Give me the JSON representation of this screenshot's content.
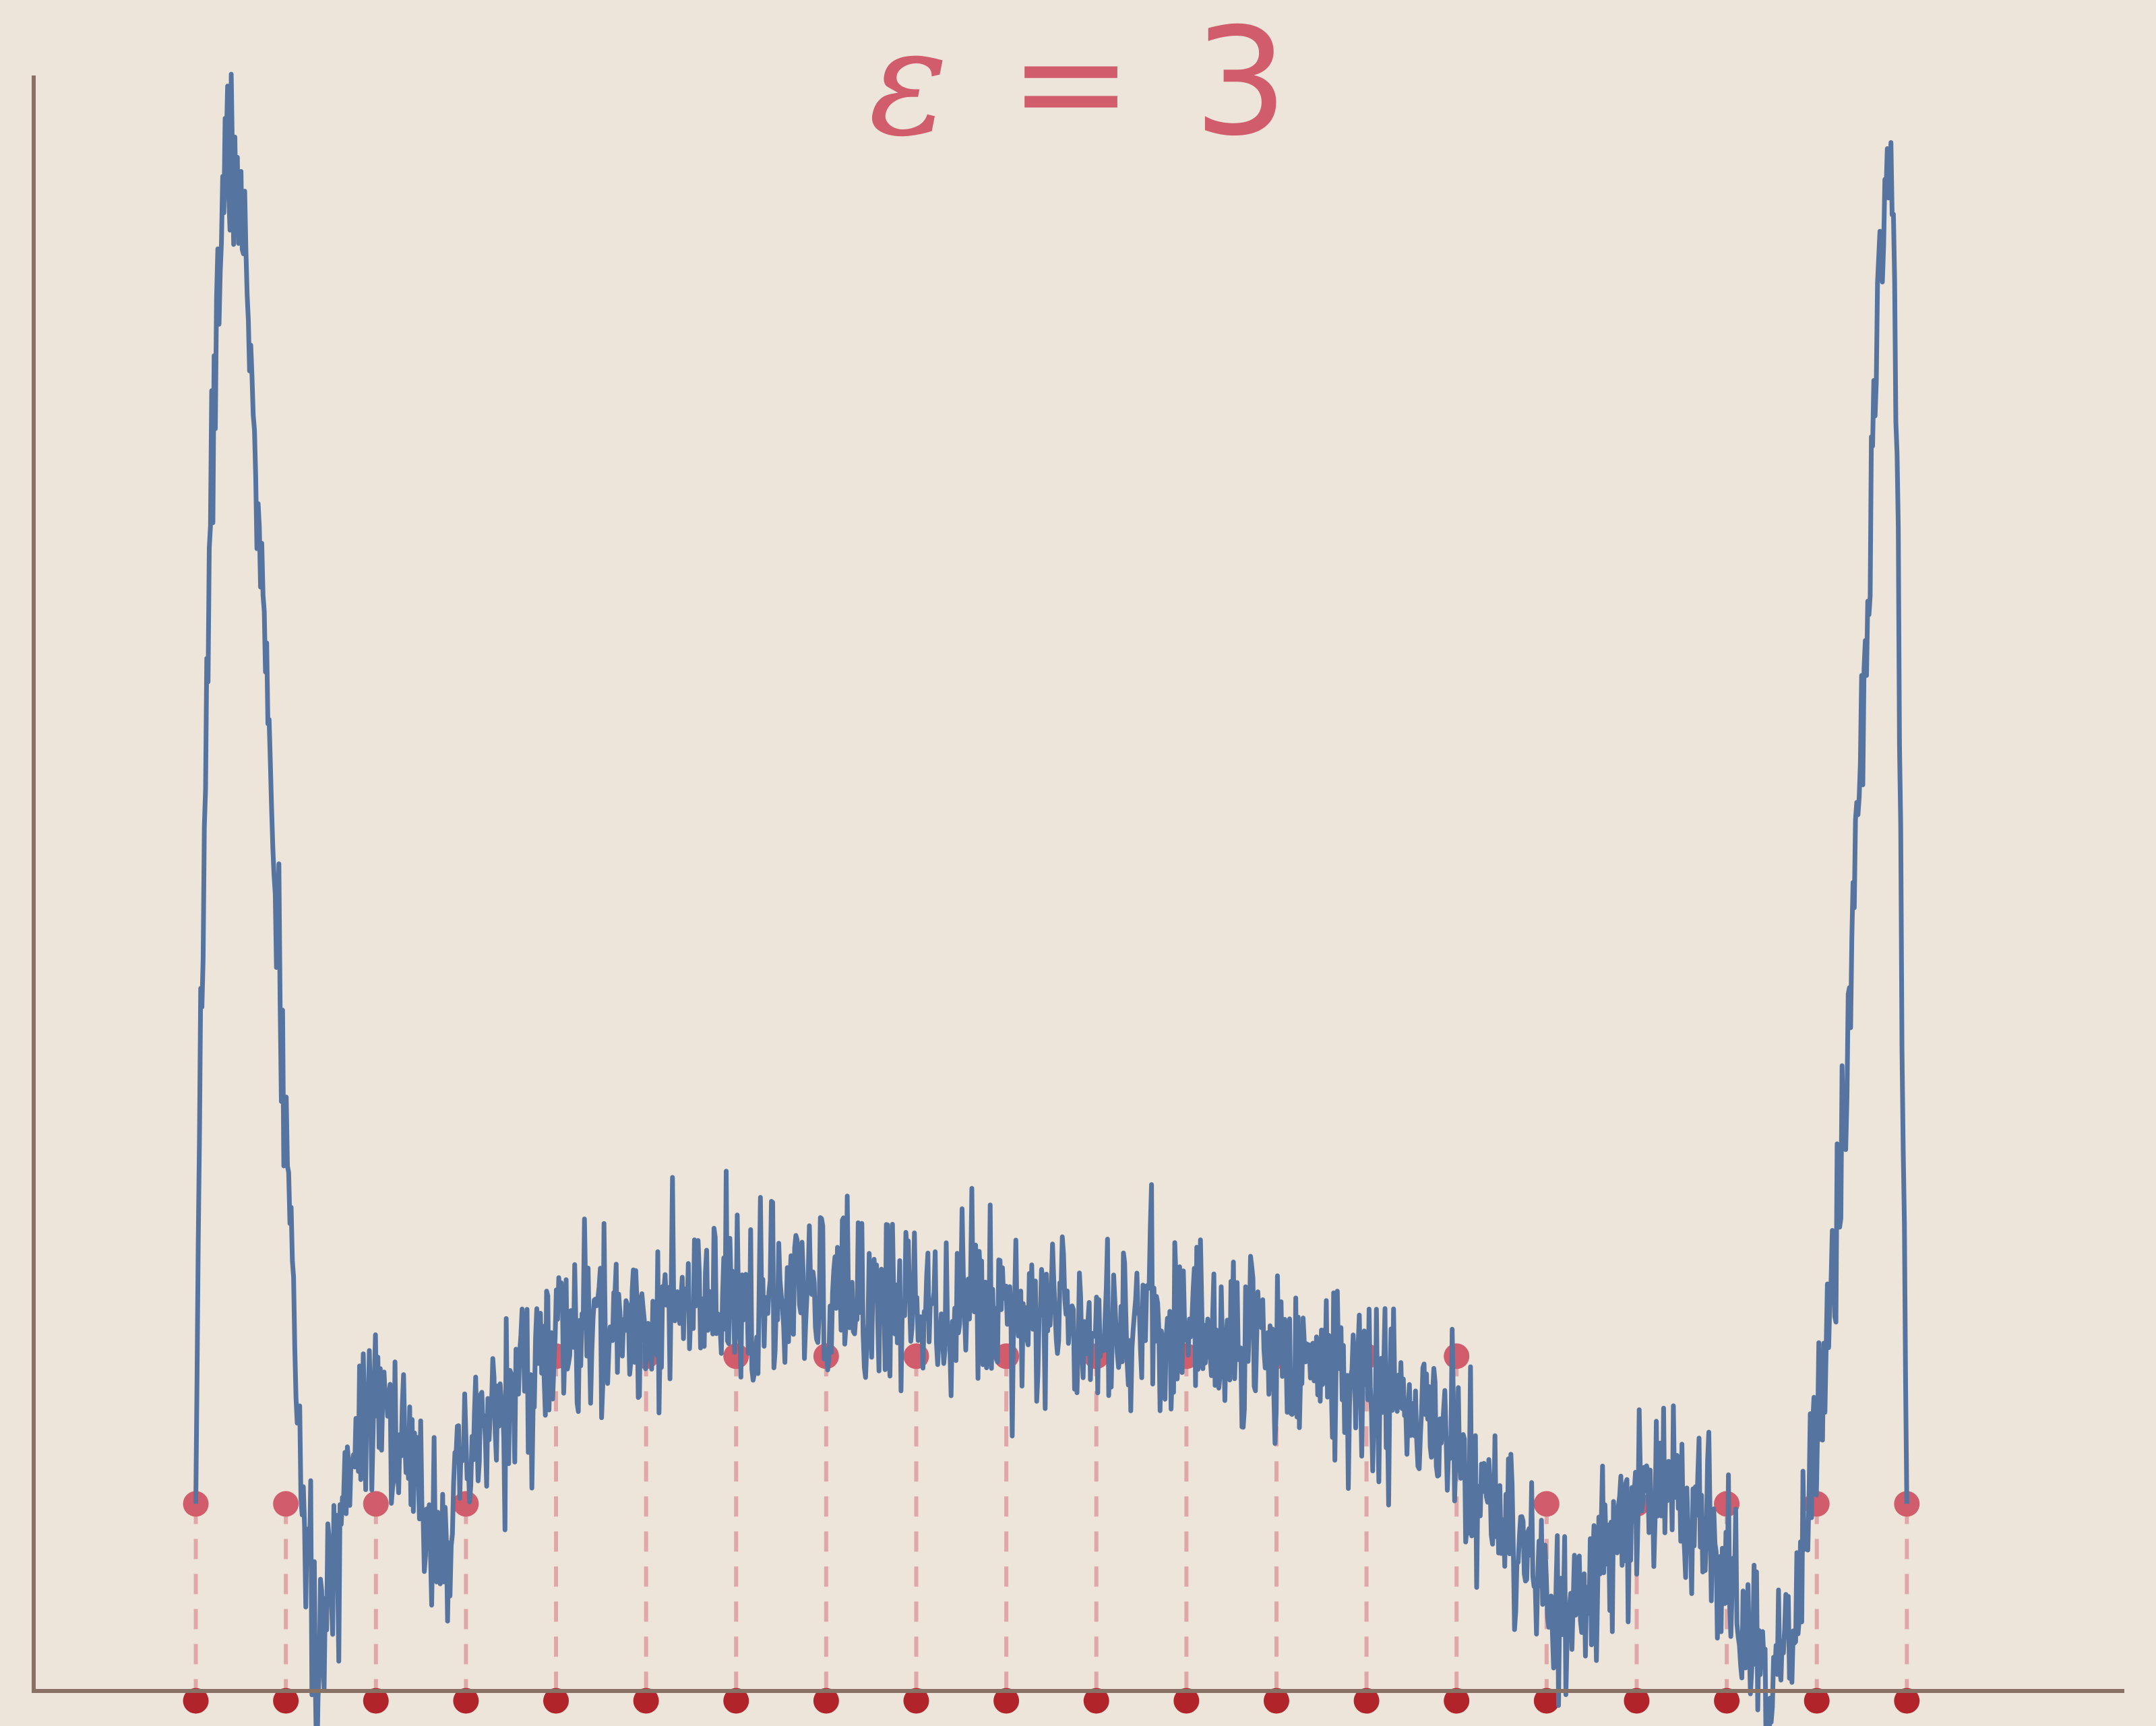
{
  "chart_data": {
    "type": "line",
    "title": {
      "symbol": "ε",
      "equals": "=",
      "value": "3"
    },
    "xlabel": "",
    "ylabel": "",
    "xlim": [
      -1.8,
      21.4
    ],
    "ylim": [
      -0.38,
      3.0
    ],
    "axes": {
      "left_spine": true,
      "bottom_spine": true,
      "ticks": false,
      "grid": false
    },
    "colors": {
      "background": "#ede4da",
      "axis": "#8a7166",
      "curve": "#5574a0",
      "sample_points": "#d05c6c",
      "base_points": "#b0242a",
      "dashed_lines": "#e0a6a8"
    },
    "noise": {
      "amplitude": 0.09,
      "seed": 7
    },
    "curve": {
      "name": "",
      "x_range": [
        0,
        19
      ],
      "samples": 1400,
      "profile_x": [
        0,
        0.03,
        0.08,
        0.15,
        0.25,
        0.35,
        0.45,
        0.55,
        0.65,
        0.75,
        0.85,
        0.95,
        1.05,
        1.15,
        1.25,
        1.35,
        1.5,
        1.7,
        2.0,
        2.2,
        2.5,
        2.8,
        3.2,
        4.0,
        5.0,
        6.0,
        7.0,
        8.0,
        9.0,
        10.0,
        11.0,
        12.0,
        13.0,
        14.0,
        14.8,
        15.2,
        15.5,
        16.0,
        16.5,
        16.8,
        17.0,
        17.2,
        17.5,
        17.8,
        18.0,
        18.2,
        18.35,
        18.5,
        18.6,
        18.7,
        18.8,
        18.85,
        18.9,
        18.95,
        19.0
      ],
      "profile_y": [
        0.0,
        0.5,
        1.2,
        1.95,
        2.5,
        2.75,
        2.72,
        2.5,
        2.2,
        1.8,
        1.35,
        0.95,
        0.55,
        0.15,
        -0.2,
        -0.33,
        -0.2,
        0.1,
        0.28,
        0.15,
        0.0,
        -0.05,
        0.15,
        0.33,
        0.38,
        0.4,
        0.41,
        0.42,
        0.41,
        0.38,
        0.36,
        0.32,
        0.25,
        0.12,
        -0.15,
        -0.25,
        -0.18,
        0.0,
        0.05,
        -0.05,
        -0.15,
        -0.28,
        -0.38,
        -0.2,
        0.15,
        0.5,
        0.95,
        1.5,
        2.05,
        2.55,
        2.7,
        2.6,
        2.0,
        1.0,
        0.0
      ]
    },
    "sample_points": {
      "x": [
        0,
        1,
        2,
        3,
        4,
        5,
        6,
        7,
        8,
        9,
        10,
        11,
        12,
        13,
        14,
        15,
        16,
        17,
        18,
        19
      ],
      "y": [
        0,
        0,
        0,
        0,
        0.3,
        0.3,
        0.3,
        0.3,
        0.3,
        0.3,
        0.3,
        0.3,
        0.3,
        0.3,
        0.3,
        0,
        0,
        0,
        0,
        0
      ]
    },
    "base_points": {
      "x": [
        0,
        1,
        2,
        3,
        4,
        5,
        6,
        7,
        8,
        9,
        10,
        11,
        12,
        13,
        14,
        15,
        16,
        17,
        18,
        19
      ],
      "y": [
        -0.4,
        -0.4,
        -0.4,
        -0.4,
        -0.4,
        -0.4,
        -0.4,
        -0.4,
        -0.4,
        -0.4,
        -0.4,
        -0.4,
        -0.4,
        -0.4,
        -0.4,
        -0.4,
        -0.4,
        -0.4,
        -0.4,
        -0.4
      ]
    }
  }
}
